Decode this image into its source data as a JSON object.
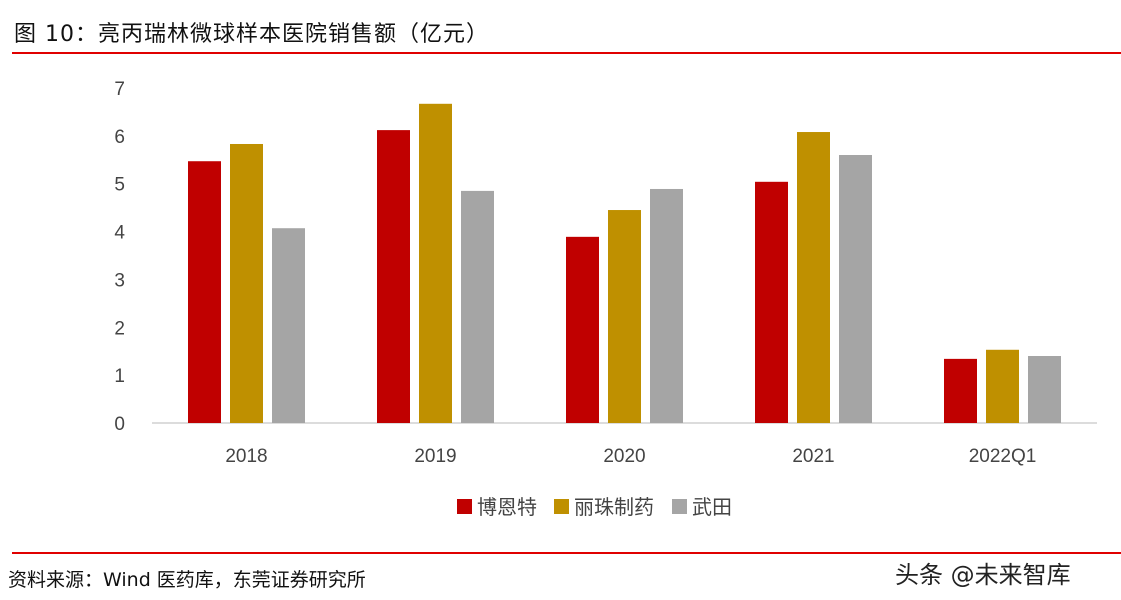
{
  "title": "图 10：亮丙瑞林微球样本医院销售额（亿元）",
  "source": "资料来源：Wind 医药库，东莞证券研究所",
  "watermark": "头条 @未来智库",
  "chart_data": {
    "type": "bar",
    "title": "亮丙瑞林微球样本医院销售额（亿元）",
    "categories": [
      "2018",
      "2019",
      "2020",
      "2021",
      "2022Q1"
    ],
    "series": [
      {
        "name": "博恩特",
        "color": "#c00000",
        "values": [
          5.47,
          6.12,
          3.89,
          5.04,
          1.34
        ]
      },
      {
        "name": "丽珠制药",
        "color": "#bf9000",
        "values": [
          5.83,
          6.67,
          4.45,
          6.08,
          1.53
        ]
      },
      {
        "name": "武田",
        "color": "#a5a5a5",
        "values": [
          4.07,
          4.85,
          4.89,
          5.6,
          1.4
        ]
      }
    ],
    "ylim": [
      0,
      7
    ],
    "yticks": [
      "0",
      "1",
      "2",
      "3",
      "4",
      "5",
      "6",
      "7"
    ],
    "legend": "bottom",
    "grid": false
  }
}
